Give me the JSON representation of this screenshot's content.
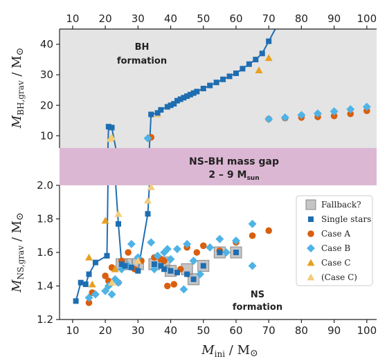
{
  "chart_data": {
    "type": "scatter",
    "colors": {
      "single": "#1f6db1",
      "caseA": "#d95f0e",
      "caseB": "#4fb3e6",
      "caseC": "#e8a020",
      "caseCpar": "#f2cd7a",
      "fallback": "#9a9a9a",
      "bh_region": "#e4e4e4",
      "gap_region": "#dcb7d3"
    },
    "x_axis": {
      "label_base": "M",
      "label_sub": "ini",
      "label_unit": " / M",
      "sun": "⊙",
      "range": [
        6,
        103
      ],
      "ticks": [
        "10",
        "20",
        "30",
        "40",
        "50",
        "60",
        "70",
        "80",
        "90",
        "100"
      ]
    },
    "top_panel": {
      "ylabel_base": "M",
      "ylabel_sub": "BH,grav",
      "ylabel_unit": " / M",
      "sun": "⊙",
      "ylim": [
        6,
        45
      ],
      "yticks": [
        "10",
        "20",
        "30",
        "40"
      ],
      "region_label_1": "BH",
      "region_label_2": "formation"
    },
    "mass_gap": {
      "label_1": "NS-BH mass gap",
      "label_2": "2 – 9 M",
      "label_2_sub": "sun"
    },
    "bottom_panel": {
      "ylabel_base": "M",
      "ylabel_sub": "NS,grav",
      "ylabel_unit": " / M",
      "sun": "⊙",
      "ylim": [
        1.2,
        2.0
      ],
      "yticks": [
        "1.2",
        "1.4",
        "1.6",
        "1.8",
        "2.0"
      ],
      "region_label_1": "NS",
      "region_label_2": "formation"
    },
    "legend": [
      "Fallback?",
      "Single stars",
      "Case A",
      "Case B",
      "Case C",
      "(Case C)"
    ],
    "series": {
      "single_ns": [
        [
          11,
          1.31
        ],
        [
          12.5,
          1.42
        ],
        [
          14,
          1.41
        ],
        [
          15,
          1.47
        ],
        [
          17,
          1.54
        ],
        [
          20.5,
          1.58
        ],
        [
          24,
          1.77
        ],
        [
          25,
          1.53
        ],
        [
          26,
          1.52
        ],
        [
          28,
          1.51
        ],
        [
          30,
          1.49
        ],
        [
          33,
          1.83
        ],
        [
          35,
          1.53
        ],
        [
          37,
          1.52
        ],
        [
          38,
          1.5
        ],
        [
          40,
          1.49
        ],
        [
          42,
          1.48
        ],
        [
          45,
          1.47
        ],
        [
          47,
          1.44
        ],
        [
          50,
          1.52
        ],
        [
          55,
          1.6
        ],
        [
          60,
          1.6
        ]
      ],
      "single_bh_low": [
        [
          21,
          13
        ],
        [
          22,
          12.7
        ]
      ],
      "single_bh_high": [
        [
          34,
          17
        ],
        [
          36,
          17.5
        ],
        [
          37,
          18.5
        ],
        [
          39,
          19.5
        ],
        [
          40,
          20
        ],
        [
          41,
          20.5
        ],
        [
          42,
          21.5
        ],
        [
          43,
          22
        ],
        [
          44,
          22.5
        ],
        [
          45,
          23
        ],
        [
          46,
          23.5
        ],
        [
          47,
          24
        ],
        [
          48,
          24.5
        ],
        [
          50,
          25.5
        ],
        [
          52,
          26.5
        ],
        [
          54,
          27.5
        ],
        [
          56,
          28.5
        ],
        [
          58,
          29.5
        ],
        [
          60,
          30.5
        ],
        [
          62,
          32
        ],
        [
          64,
          33.5
        ],
        [
          66,
          35
        ],
        [
          68,
          37
        ],
        [
          70,
          41
        ]
      ],
      "caseA_ns": [
        [
          15,
          1.3
        ],
        [
          16,
          1.36
        ],
        [
          20,
          1.46
        ],
        [
          21,
          1.43
        ],
        [
          22,
          1.51
        ],
        [
          24,
          1.42
        ],
        [
          25,
          1.55
        ],
        [
          27,
          1.6
        ],
        [
          29,
          1.5
        ],
        [
          31,
          1.55
        ],
        [
          35,
          1.57
        ],
        [
          37,
          1.56
        ],
        [
          38,
          1.55
        ],
        [
          39,
          1.4
        ],
        [
          41,
          1.41
        ],
        [
          43,
          1.5
        ],
        [
          45,
          1.63
        ],
        [
          48,
          1.6
        ],
        [
          50,
          1.64
        ],
        [
          55,
          1.61
        ],
        [
          60,
          1.66
        ],
        [
          65,
          1.7
        ],
        [
          70,
          1.73
        ]
      ],
      "caseA_bh": [
        [
          34,
          9.5
        ],
        [
          70,
          15.5
        ],
        [
          75,
          15.8
        ],
        [
          80,
          16
        ],
        [
          85,
          16.2
        ],
        [
          90,
          16.5
        ],
        [
          95,
          17.2
        ],
        [
          100,
          18.2
        ]
      ],
      "caseB_ns": [
        [
          15,
          1.33
        ],
        [
          17,
          1.35
        ],
        [
          20,
          1.37
        ],
        [
          21,
          1.4
        ],
        [
          22,
          1.35
        ],
        [
          23,
          1.44
        ],
        [
          24,
          1.42
        ],
        [
          25,
          1.5
        ],
        [
          27,
          1.52
        ],
        [
          28,
          1.65
        ],
        [
          30,
          1.57
        ],
        [
          34,
          1.66
        ],
        [
          35,
          1.5
        ],
        [
          36,
          1.58
        ],
        [
          38,
          1.6
        ],
        [
          39,
          1.62
        ],
        [
          40,
          1.56
        ],
        [
          42,
          1.62
        ],
        [
          44,
          1.38
        ],
        [
          45,
          1.65
        ],
        [
          47,
          1.55
        ],
        [
          49,
          1.47
        ],
        [
          52,
          1.63
        ],
        [
          55,
          1.68
        ],
        [
          57,
          1.6
        ],
        [
          60,
          1.67
        ],
        [
          65,
          1.77
        ],
        [
          65,
          1.52
        ]
      ],
      "caseB_bh": [
        [
          33,
          9.2
        ],
        [
          70,
          15.5
        ],
        [
          75,
          16
        ],
        [
          80,
          16.8
        ],
        [
          85,
          17.3
        ],
        [
          90,
          18
        ],
        [
          95,
          18.7
        ],
        [
          100,
          19.5
        ]
      ],
      "caseC_ns": [
        [
          15,
          1.57
        ],
        [
          16,
          1.41
        ],
        [
          20,
          1.79
        ],
        [
          23,
          1.5
        ]
      ],
      "caseC_bh": [
        [
          67,
          31.5
        ],
        [
          70,
          35.5
        ]
      ],
      "caseCpar_ns": [
        [
          22,
          1.42
        ],
        [
          24,
          1.83
        ],
        [
          30,
          1.55
        ],
        [
          33,
          1.91
        ],
        [
          34,
          1.99
        ]
      ],
      "caseCpar_bh": [
        [
          21.5,
          9
        ],
        [
          22,
          9.5
        ],
        [
          36,
          17
        ]
      ],
      "fallback_ns": [
        [
          25,
          1.53
        ],
        [
          26.5,
          1.53
        ],
        [
          30,
          1.53
        ],
        [
          35,
          1.53
        ],
        [
          38,
          1.54
        ],
        [
          40,
          1.49
        ],
        [
          45,
          1.5
        ],
        [
          47,
          1.44
        ],
        [
          50,
          1.52
        ],
        [
          55,
          1.6
        ],
        [
          60,
          1.6
        ]
      ],
      "line_ns_a": [
        [
          11,
          1.31
        ],
        [
          12.5,
          1.42
        ],
        [
          14,
          1.41
        ],
        [
          15,
          1.47
        ],
        [
          17,
          1.54
        ],
        [
          20.5,
          1.58
        ],
        [
          20.8,
          2.0
        ]
      ],
      "line_ns_b": [
        [
          23.2,
          2.0
        ],
        [
          24,
          1.77
        ],
        [
          25,
          1.53
        ],
        [
          26,
          1.52
        ],
        [
          28,
          1.51
        ],
        [
          30,
          1.49
        ],
        [
          33,
          1.83
        ],
        [
          33.5,
          2.0
        ]
      ],
      "line_bh_a": [
        [
          20.8,
          6
        ],
        [
          21,
          13
        ],
        [
          22,
          12.7
        ],
        [
          23.2,
          6
        ]
      ],
      "line_bh_b": [
        [
          33.5,
          6
        ],
        [
          34,
          17
        ],
        [
          36,
          17.5
        ],
        [
          37,
          18.5
        ],
        [
          39,
          19.5
        ],
        [
          40,
          20
        ],
        [
          41,
          20.5
        ],
        [
          42,
          21.5
        ],
        [
          43,
          22
        ],
        [
          44,
          22.5
        ],
        [
          45,
          23
        ],
        [
          46,
          23.5
        ],
        [
          47,
          24
        ],
        [
          48,
          24.5
        ],
        [
          50,
          25.5
        ],
        [
          52,
          26.5
        ],
        [
          54,
          27.5
        ],
        [
          56,
          28.5
        ],
        [
          58,
          29.5
        ],
        [
          60,
          30.5
        ],
        [
          62,
          32
        ],
        [
          64,
          33.5
        ],
        [
          66,
          35
        ],
        [
          68,
          37
        ],
        [
          70,
          41
        ],
        [
          72,
          45
        ]
      ]
    }
  }
}
